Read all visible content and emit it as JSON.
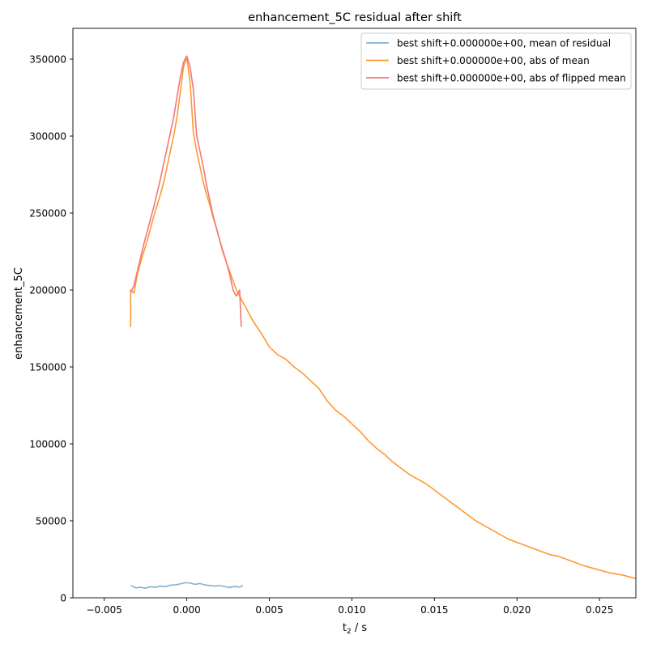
{
  "chart_data": {
    "type": "line",
    "title": "enhancement_5C residual after shift",
    "xlabel_main": "t",
    "xlabel_sub": "2",
    "xlabel_rest": " / s",
    "ylabel": "enhancement_5C",
    "xlim": [
      -0.0069,
      0.0272
    ],
    "ylim": [
      0,
      370000
    ],
    "x_ticks": [
      -0.005,
      0.0,
      0.005,
      0.01,
      0.015,
      0.02,
      0.025
    ],
    "x_tick_labels": [
      "−0.005",
      "0.000",
      "0.005",
      "0.010",
      "0.015",
      "0.020",
      "0.025"
    ],
    "y_ticks": [
      0,
      50000,
      100000,
      150000,
      200000,
      250000,
      300000,
      350000
    ],
    "y_tick_labels": [
      "0",
      "50000",
      "100000",
      "150000",
      "200000",
      "250000",
      "300000",
      "350000"
    ],
    "grid": false,
    "legend_position": "top-right",
    "series": [
      {
        "name": "best shift+0.000000e+00, mean of residual",
        "color": "#7fb2d5",
        "x": [
          -0.0034,
          -0.0031,
          -0.0028,
          -0.0025,
          -0.0022,
          -0.0019,
          -0.0016,
          -0.0013,
          -0.001,
          -0.0007,
          -0.0004,
          -0.0001,
          0.0002,
          0.0005,
          0.0008,
          0.0011,
          0.0014,
          0.0017,
          0.002,
          0.0023,
          0.0026,
          0.0029,
          0.0032,
          0.0034
        ],
        "y": [
          8000,
          6500,
          6800,
          6200,
          7200,
          6800,
          7600,
          7200,
          8200,
          8400,
          9000,
          9800,
          9600,
          8700,
          9300,
          8300,
          8000,
          7600,
          7900,
          7300,
          6600,
          7400,
          6900,
          8000
        ]
      },
      {
        "name": "best shift+0.000000e+00, abs of mean",
        "color": "#ff9933",
        "x": [
          -0.0034,
          -0.0034,
          -0.0032,
          -0.003,
          -0.0028,
          -0.0026,
          -0.0024,
          -0.0022,
          -0.002,
          -0.0018,
          -0.0016,
          -0.0014,
          -0.0012,
          -0.001,
          -0.0008,
          -0.0006,
          -0.0004,
          -0.0002,
          0.0,
          0.0002,
          0.0004,
          0.0006,
          0.0008,
          0.001,
          0.0012,
          0.0014,
          0.0016,
          0.0018,
          0.002,
          0.0022,
          0.0024,
          0.0026,
          0.0028,
          0.003,
          0.0032,
          0.0034,
          0.0036,
          0.004,
          0.0045,
          0.005,
          0.0055,
          0.006,
          0.0065,
          0.007,
          0.0075,
          0.008,
          0.0085,
          0.009,
          0.0095,
          0.01,
          0.0105,
          0.011,
          0.0115,
          0.012,
          0.0125,
          0.013,
          0.0135,
          0.014,
          0.0145,
          0.015,
          0.0155,
          0.016,
          0.0165,
          0.017,
          0.0175,
          0.018,
          0.0185,
          0.019,
          0.0195,
          0.02,
          0.0205,
          0.021,
          0.0215,
          0.022,
          0.0225,
          0.023,
          0.0235,
          0.024,
          0.0245,
          0.025,
          0.0255,
          0.026,
          0.0265,
          0.027,
          0.0272
        ],
        "y": [
          176000,
          200000,
          198000,
          210000,
          218000,
          225000,
          232000,
          240000,
          248000,
          255000,
          262000,
          270000,
          280000,
          290000,
          300000,
          312000,
          328000,
          345000,
          351000,
          335000,
          302000,
          290000,
          280000,
          270000,
          262000,
          255000,
          247000,
          240000,
          232000,
          224000,
          218000,
          212000,
          206000,
          200000,
          196000,
          192000,
          188000,
          180000,
          172000,
          163000,
          158000,
          155000,
          150000,
          146000,
          141000,
          136000,
          128000,
          122000,
          118000,
          113000,
          108000,
          102000,
          97000,
          93000,
          88000,
          84000,
          80000,
          77000,
          74000,
          70000,
          66000,
          62000,
          58000,
          54000,
          50000,
          47000,
          44000,
          41000,
          38000,
          36000,
          34000,
          32000,
          30000,
          28000,
          27000,
          25000,
          23000,
          21000,
          19500,
          18000,
          16500,
          15500,
          14500,
          13000,
          12500
        ]
      },
      {
        "name": "best shift+0.000000e+00, abs of flipped mean",
        "color": "#f07878",
        "x": [
          -0.0034,
          -0.0032,
          -0.003,
          -0.0028,
          -0.0026,
          -0.0024,
          -0.0022,
          -0.002,
          -0.0018,
          -0.0016,
          -0.0014,
          -0.0012,
          -0.001,
          -0.0008,
          -0.0006,
          -0.0004,
          -0.0002,
          0.0,
          0.0002,
          0.0004,
          0.0006,
          0.0008,
          0.001,
          0.0012,
          0.0014,
          0.0016,
          0.0018,
          0.002,
          0.0022,
          0.0024,
          0.0026,
          0.0028,
          0.003,
          0.0032,
          0.0033
        ],
        "y": [
          198000,
          203000,
          212000,
          221000,
          230000,
          238000,
          246000,
          254000,
          263000,
          272000,
          282000,
          292000,
          302000,
          312000,
          325000,
          338000,
          348000,
          352000,
          345000,
          330000,
          300000,
          290000,
          280000,
          268000,
          258000,
          248000,
          240000,
          232000,
          225000,
          218000,
          210000,
          200000,
          196000,
          200000,
          176000
        ]
      }
    ]
  }
}
